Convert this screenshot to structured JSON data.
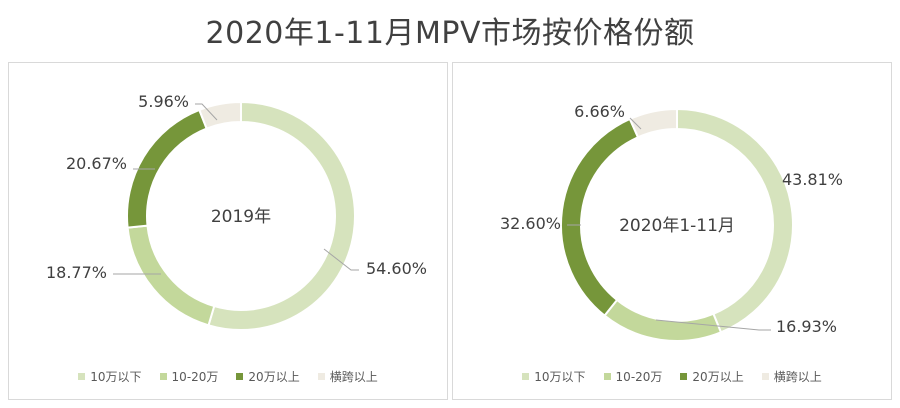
{
  "title": "2020年1-11月MPV市场按价格份额",
  "colors": {
    "under10": "#d6e3bd",
    "10to20": "#c3d89b",
    "over20": "#76963a",
    "crossover": "#efebe2"
  },
  "chart_data": [
    {
      "type": "pie",
      "subtype": "donut",
      "center_label": "2019年",
      "categories": [
        "10万以下",
        "10-20万",
        "20万以上",
        "横跨以上"
      ],
      "values": [
        54.6,
        18.77,
        20.67,
        5.96
      ],
      "labels": [
        "54.60%",
        "18.77%",
        "20.67%",
        "5.96%"
      ],
      "legend_position": "bottom"
    },
    {
      "type": "pie",
      "subtype": "donut",
      "center_label": "2020年1-11月",
      "categories": [
        "10万以下",
        "10-20万",
        "20万以上",
        "横跨以上"
      ],
      "values": [
        43.81,
        16.93,
        32.6,
        6.66
      ],
      "labels": [
        "43.81%",
        "16.93%",
        "32.60%",
        "6.66%"
      ],
      "legend_position": "bottom"
    }
  ]
}
